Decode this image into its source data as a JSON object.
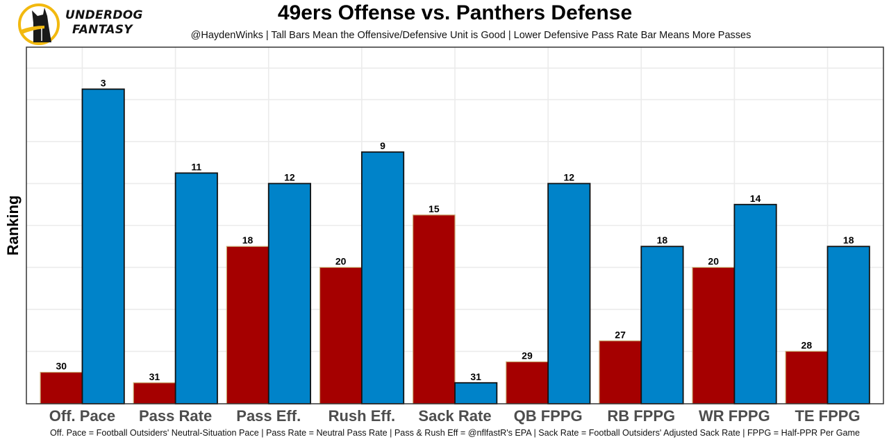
{
  "header": {
    "brand_line1": "UNDERDOG",
    "brand_line2": "FANTASY",
    "logo_icon": "underdog-dog-logo-icon"
  },
  "colors": {
    "offense_fill": "#a50000",
    "offense_outline": "#c8a870",
    "defense_fill": "#0083c9",
    "defense_outline": "#111111",
    "logo_ring": "#f2b90f"
  },
  "chart_data": {
    "type": "bar",
    "title": "49ers Offense vs. Panthers Defense",
    "subtitle": "@HaydenWinks | Tall Bars Mean the Offensive/Defensive Unit is Good | Lower Defensive Pass Rate Bar Means More Passes",
    "xlabel": "",
    "ylabel": "Ranking",
    "caption": "Off. Pace = Football Outsiders' Neutral-Situation Pace | Pass Rate = Neutral Pass Rate | Pass & Rush Eff = @nflfastR's EPA | Sack Rate = Football Outsiders' Adjusted Sack Rate | FPPG = Half-PPR Per Game",
    "categories": [
      "Off. Pace",
      "Pass Rate",
      "Pass Eff.",
      "Rush Eff.",
      "Sack Rate",
      "QB FPPG",
      "RB FPPG",
      "WR FPPG",
      "TE FPPG"
    ],
    "series": [
      {
        "name": "49ers Offense",
        "values": [
          30,
          31,
          18,
          20,
          15,
          29,
          27,
          20,
          28
        ]
      },
      {
        "name": "Panthers Defense",
        "values": [
          3,
          11,
          12,
          9,
          31,
          12,
          18,
          14,
          18
        ]
      }
    ],
    "value_note": "Bar height is inverted rank (rank 1 = tallest); heights proportional to 33 minus rank",
    "rank_baseline": 33,
    "ylim": [
      0,
      34
    ],
    "y_tick_labels_shown": false,
    "grid": true,
    "legend": "none"
  }
}
